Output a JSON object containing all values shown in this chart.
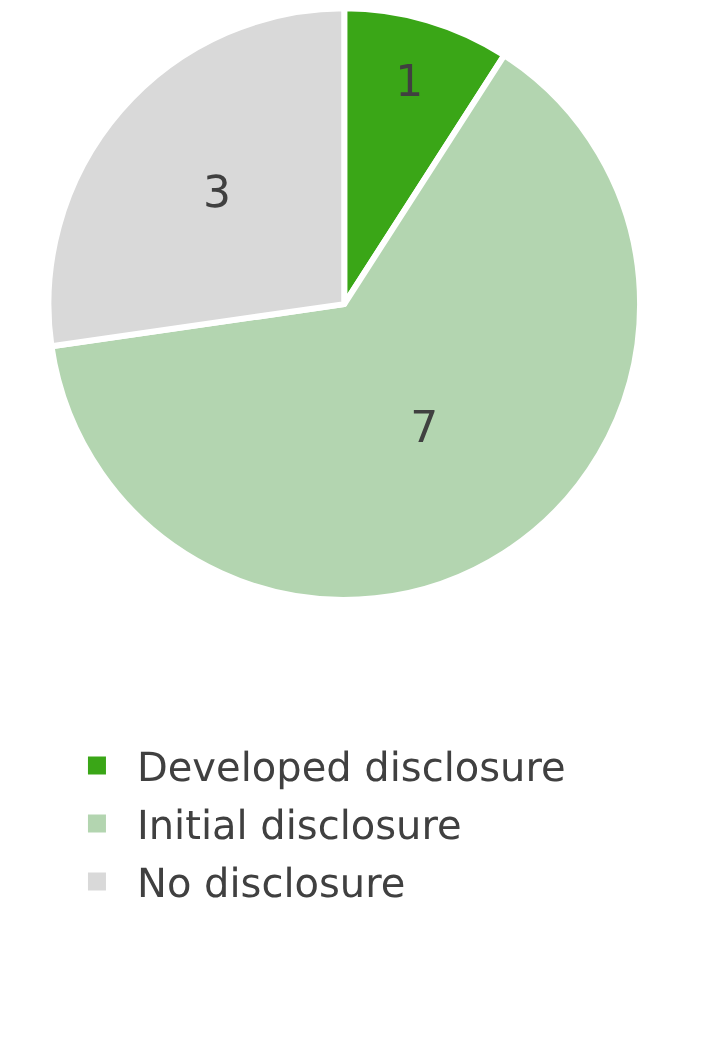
{
  "chart_data": {
    "type": "pie",
    "categories": [
      "Developed disclosure",
      "Initial disclosure",
      "No disclosure"
    ],
    "values": [
      1,
      7,
      3
    ],
    "colors": [
      "#3aa617",
      "#b3d5b0",
      "#d9d9d9"
    ],
    "data_labels": true,
    "legend": "bottom"
  }
}
